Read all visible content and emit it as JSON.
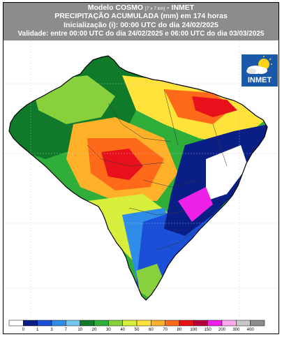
{
  "header": {
    "line1_main": "Modelo COSMO",
    "line1_small": "[7 x 7 km]",
    "line1_tail": "- INMET",
    "line2": "PRECIPITAÇÃO ACUMULADA (mm) em 174 horas",
    "line3": "Inicialização (i): 00:00 UTC do dia 24/02/2025",
    "line4": "Validade: entre 00:00 UTC do dia 24/02/2025 e 06:00 UTC do dia 03/03/2025"
  },
  "logo": {
    "text": "INMET",
    "icon": "sun-cloud-icon"
  },
  "legend": {
    "labels": [
      "0",
      "1",
      "3",
      "7",
      "10",
      "20",
      "30",
      "40",
      "50",
      "60",
      "70",
      "80",
      "100",
      "150",
      "200",
      "300",
      "400"
    ],
    "colors": [
      "#ffffff",
      "#0a1f86",
      "#1a4fd8",
      "#2f8de9",
      "#72c7ef",
      "#0e7a2a",
      "#2fae3a",
      "#88d13c",
      "#d7ef3a",
      "#ffe23a",
      "#ffb12a",
      "#ff6a1a",
      "#e8101a",
      "#b5003a",
      "#ee21e8",
      "#ffaaee",
      "#c8c8c8",
      "#8c8c8c"
    ]
  }
}
